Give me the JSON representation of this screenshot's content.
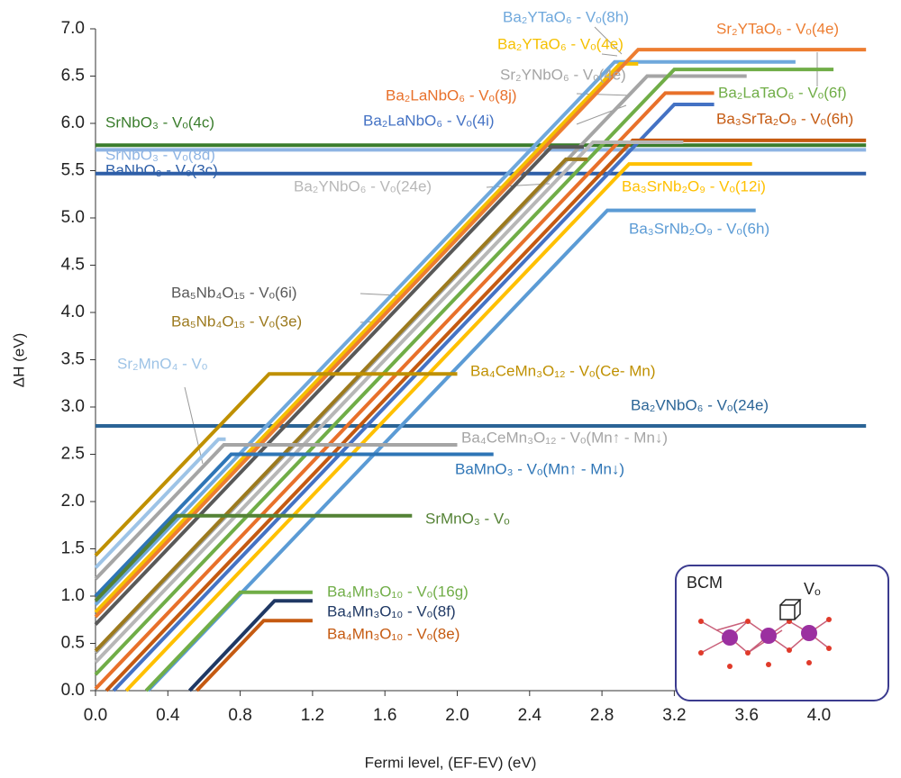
{
  "chart_data": {
    "type": "line",
    "xlabel": "Fermi level, (EF-EV) (eV)",
    "ylabel": "ΔH (eV)",
    "xlim": [
      0,
      4.26
    ],
    "ylim": [
      0,
      7.0
    ],
    "xticks": [
      {
        "value": 0,
        "label": "0.0"
      },
      0.4,
      {
        "value": 0.8,
        "label": "0.8"
      },
      1.2,
      1.6,
      {
        "value": 2,
        "label": "2.0"
      },
      2.4,
      2.8,
      3.2,
      3.6,
      {
        "value": 4,
        "label": "4.0"
      }
    ],
    "yticks": [
      {
        "value": 0,
        "label": "0.0"
      },
      0.5,
      {
        "value": 1,
        "label": "1.0"
      },
      1.5,
      {
        "value": 2,
        "label": "2.0"
      },
      2.5,
      {
        "value": 3,
        "label": "3.0"
      },
      3.5,
      {
        "value": 4,
        "label": "4.0"
      },
      4.5,
      {
        "value": 5,
        "label": "5.0"
      },
      5.5,
      {
        "value": 6,
        "label": "6.0"
      },
      6.5,
      {
        "value": 7,
        "label": "7.0"
      }
    ],
    "series": [
      {
        "name": "SrNbO₃ - Vₒ(4c)",
        "color": "#3a7d2c",
        "x": [
          0,
          4.26
        ],
        "values": [
          5.77,
          5.77
        ]
      },
      {
        "name": "SrNbO₃ - Vₒ(8d)",
        "color": "#8eb4e3",
        "x": [
          0,
          4.26
        ],
        "values": [
          5.72,
          5.72
        ]
      },
      {
        "name": "BaNbO₃ - Vₒ(3c)",
        "color": "#2e5fa8",
        "x": [
          0,
          4.26
        ],
        "values": [
          5.47,
          5.47
        ]
      },
      {
        "name": "Ba₂VNbO₆ - Vₒ(24e)",
        "color": "#2a6496",
        "x": [
          0,
          4.26
        ],
        "values": [
          2.8,
          2.8
        ]
      },
      {
        "name": "Ba₂YTaO₆ - Vₒ(8h)",
        "color": "#6fa8dc",
        "x": [
          0,
          2.87,
          3.87
        ],
        "values": [
          0.91,
          6.65,
          6.65
        ]
      },
      {
        "name": "Ba₂YTaO₆ - Vₒ(4e)",
        "color": "#f5c000",
        "x": [
          0,
          2.9,
          3.0
        ],
        "values": [
          0.83,
          6.63,
          6.63
        ]
      },
      {
        "name": "Sr₂YTaO₆ - Vₒ(4e)",
        "color": "#ed7d31",
        "x": [
          0,
          3.0,
          4.26
        ],
        "values": [
          0.78,
          6.78,
          6.78
        ]
      },
      {
        "name": "Sr₂YNbO₆ - Vₒ(4e)",
        "color": "#a5a5a5",
        "x": [
          0,
          3.05,
          3.6
        ],
        "values": [
          0.4,
          6.5,
          6.5
        ]
      },
      {
        "name": "Ba₂LaNbO₆ - Vₒ(8j)",
        "color": "#e8702a",
        "x": [
          0,
          3.15,
          3.42
        ],
        "values": [
          0.02,
          6.32,
          6.32
        ]
      },
      {
        "name": "Ba₂LaTaO₆ - Vₒ(6f)",
        "color": "#70ad47",
        "x": [
          0,
          3.2,
          4.08
        ],
        "values": [
          0.17,
          6.57,
          6.57
        ]
      },
      {
        "name": "Ba₂LaNbO₆ - Vₒ(4i)",
        "color": "#4472c4",
        "x": [
          0.1,
          3.2,
          3.42
        ],
        "values": [
          0,
          6.2,
          6.2
        ]
      },
      {
        "name": "Ba₃SrTa₂O₉ - Vₒ(6h)",
        "color": "#c55a11",
        "x": [
          0.06,
          2.97,
          4.26
        ],
        "values": [
          0,
          5.82,
          5.82
        ]
      },
      {
        "name": "Ba₂YNbO₆ - Vₒ(24e)",
        "color": "#b7b7b7",
        "x": [
          0,
          2.75,
          3.25
        ],
        "values": [
          0.3,
          5.8,
          5.8
        ]
      },
      {
        "name": "Ba₃SrNb₂O₉ - Vₒ(12i)",
        "color": "#ffc000",
        "x": [
          0.17,
          2.95,
          3.63
        ],
        "values": [
          0,
          5.57,
          5.57
        ]
      },
      {
        "name": "Ba₃SrNb₂O₉ - Vₒ(6h)",
        "color": "#5b9bd5",
        "x": [
          0.29,
          2.83,
          3.65
        ],
        "values": [
          0,
          5.08,
          5.08
        ]
      },
      {
        "name": "Ba₅Nb₄O₁₅ - Vₒ(6i)",
        "color": "#595959",
        "x": [
          0,
          2.52,
          2.7
        ],
        "values": [
          0.7,
          5.75,
          5.75
        ]
      },
      {
        "name": "Ba₅Nb₄O₁₅ - Vₒ(3e)",
        "color": "#9c7a1e",
        "x": [
          0,
          2.6,
          2.72
        ],
        "values": [
          0.42,
          5.62,
          5.62
        ]
      },
      {
        "name": "Sr₂MnO₄ - Vₒ",
        "color": "#9dc3e6",
        "x": [
          0,
          0.68,
          0.72
        ],
        "values": [
          1.3,
          2.66,
          2.66
        ]
      },
      {
        "name": "Ba₄CeMn₃O₁₂ - Vₒ(Ce- Mn)",
        "color": "#bf9000",
        "x": [
          0,
          0.96,
          2.0
        ],
        "values": [
          1.43,
          3.35,
          3.35
        ]
      },
      {
        "name": "Ba₄CeMn₃O₁₂ - Vₒ(Mn↑ - Mn↓)",
        "color": "#a5a5a5",
        "x": [
          0,
          0.71,
          2.0
        ],
        "values": [
          1.18,
          2.6,
          2.6
        ]
      },
      {
        "name": "BaMnO₃ - Vₒ(Mn↑ - Mn↓)",
        "color": "#2e75b6",
        "x": [
          0,
          0.75,
          2.2
        ],
        "values": [
          1.0,
          2.5,
          2.5
        ]
      },
      {
        "name": "SrMnO₃ - Vₒ",
        "color": "#548235",
        "x": [
          0,
          0.45,
          1.75
        ],
        "values": [
          0.95,
          1.85,
          1.85
        ]
      },
      {
        "name": "Ba₄Mn₃O₁₀ - Vₒ(16g)",
        "color": "#70ad47",
        "x": [
          0.28,
          0.8,
          1.2
        ],
        "values": [
          0,
          1.04,
          1.04
        ]
      },
      {
        "name": "Ba₄Mn₃O₁₀ - Vₒ(8f)",
        "color": "#1f3864",
        "x": [
          0.52,
          0.99,
          1.2
        ],
        "values": [
          0,
          0.95,
          0.95
        ]
      },
      {
        "name": "Ba₄Mn₃O₁₀ - Vₒ(8e)",
        "color": "#c55a11",
        "x": [
          0.56,
          0.93,
          1.2
        ],
        "values": [
          0,
          0.74,
          0.74
        ]
      }
    ],
    "inset": {
      "label": "BCM",
      "vacancy": "Vₒ"
    }
  }
}
